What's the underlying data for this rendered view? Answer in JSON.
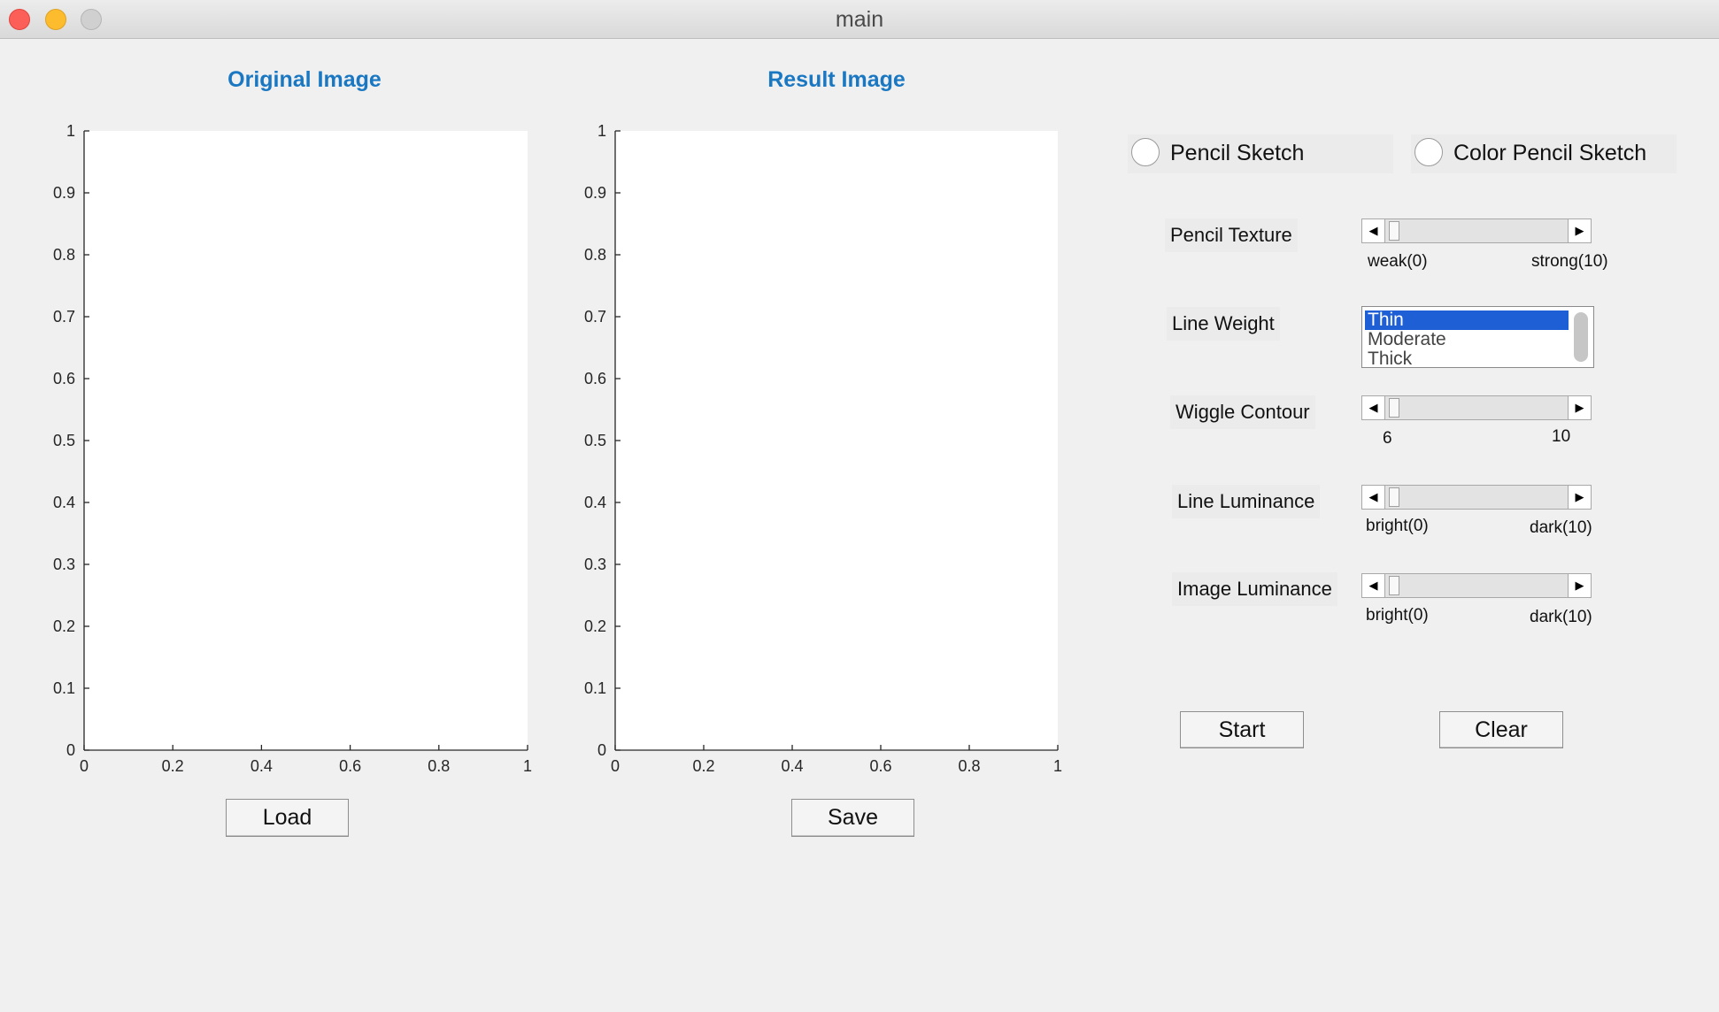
{
  "window": {
    "title": "main",
    "controls": [
      "close-button",
      "minimize-button",
      "zoom-button"
    ]
  },
  "panels": {
    "original": {
      "title": "Original Image",
      "button_label": "Load"
    },
    "result": {
      "title": "Result Image",
      "button_label": "Save"
    }
  },
  "chart_data": [
    {
      "type": "scatter",
      "title": "",
      "xlabel": "",
      "ylabel": "",
      "xlim": [
        0,
        1
      ],
      "ylim": [
        0,
        1
      ],
      "xticks": [
        "0",
        "0.2",
        "0.4",
        "0.6",
        "0.8",
        "1"
      ],
      "yticks": [
        "0",
        "0.1",
        "0.2",
        "0.3",
        "0.4",
        "0.5",
        "0.6",
        "0.7",
        "0.8",
        "0.9",
        "1"
      ],
      "series": [],
      "grid": false
    },
    {
      "type": "scatter",
      "title": "",
      "xlabel": "",
      "ylabel": "",
      "xlim": [
        0,
        1
      ],
      "ylim": [
        0,
        1
      ],
      "xticks": [
        "0",
        "0.2",
        "0.4",
        "0.6",
        "0.8",
        "1"
      ],
      "yticks": [
        "0",
        "0.1",
        "0.2",
        "0.3",
        "0.4",
        "0.5",
        "0.6",
        "0.7",
        "0.8",
        "0.9",
        "1"
      ],
      "series": [],
      "grid": false
    }
  ],
  "options": {
    "radio_pencil": "Pencil Sketch",
    "radio_color": "Color Pencil Sketch",
    "pencil_texture": {
      "label": "Pencil Texture",
      "min_label": "weak(0)",
      "max_label": "strong(10)",
      "value": 0
    },
    "line_weight": {
      "label": "Line Weight",
      "items": [
        "Thin",
        "Moderate",
        "Thick"
      ],
      "selected": "Thin"
    },
    "wiggle_contour": {
      "label": "Wiggle Contour",
      "min_label": "6",
      "max_label": "10",
      "value": 6
    },
    "line_luminance": {
      "label": "Line Luminance",
      "min_label": "bright(0)",
      "max_label": "dark(10)",
      "value": 0
    },
    "image_luminance": {
      "label": "Image Luminance",
      "min_label": "bright(0)",
      "max_label": "dark(10)",
      "value": 0
    }
  },
  "actions": {
    "start_label": "Start",
    "clear_label": "Clear"
  }
}
